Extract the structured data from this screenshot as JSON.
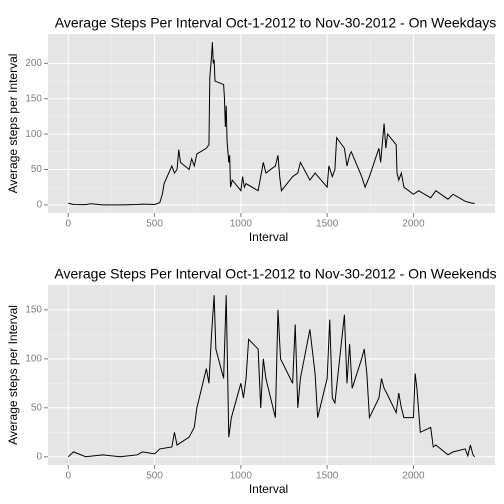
{
  "chart_data": [
    {
      "type": "line",
      "title": "Average Steps Per Interval  Oct-1-2012 to Nov-30-2012 - On Weekdays",
      "xlabel": "Interval",
      "ylabel": "Average steps per Interval",
      "color": "#000000",
      "grid": true,
      "x": [
        0,
        30,
        100,
        130,
        200,
        300,
        400,
        430,
        500,
        530,
        545,
        555,
        600,
        615,
        630,
        640,
        650,
        700,
        715,
        730,
        745,
        800,
        815,
        820,
        830,
        835,
        840,
        845,
        850,
        900,
        905,
        910,
        915,
        920,
        930,
        935,
        940,
        950,
        1000,
        1010,
        1020,
        1030,
        1100,
        1130,
        1145,
        1200,
        1215,
        1225,
        1235,
        1300,
        1330,
        1345,
        1400,
        1430,
        1500,
        1510,
        1530,
        1545,
        1555,
        1600,
        1615,
        1630,
        1640,
        1700,
        1720,
        1745,
        1800,
        1810,
        1830,
        1840,
        1850,
        1900,
        1905,
        1915,
        1930,
        1945,
        2000,
        2030,
        2100,
        2130,
        2200,
        2230,
        2300,
        2330,
        2355
      ],
      "values": [
        2.3,
        0.5,
        0.4,
        1.5,
        0,
        0,
        0.5,
        1,
        0.5,
        3,
        15,
        30,
        55,
        45,
        50,
        78,
        60,
        50,
        65,
        55,
        72,
        80,
        85,
        180,
        210,
        230,
        200,
        205,
        175,
        170,
        150,
        110,
        140,
        90,
        60,
        70,
        25,
        35,
        20,
        40,
        25,
        30,
        20,
        60,
        45,
        55,
        70,
        40,
        20,
        40,
        45,
        60,
        35,
        45,
        25,
        55,
        40,
        50,
        95,
        80,
        55,
        70,
        75,
        40,
        25,
        40,
        80,
        60,
        115,
        80,
        100,
        85,
        45,
        35,
        45,
        25,
        15,
        20,
        10,
        20,
        8,
        15,
        5,
        3,
        2
      ],
      "xlim": [
        -117.75,
        2472.75
      ],
      "ylim": [
        -11.5,
        241.5
      ],
      "xticks": [
        0,
        500,
        1000,
        1500,
        2000
      ],
      "yticks": [
        0,
        50,
        100,
        150,
        200
      ]
    },
    {
      "type": "line",
      "title": "Average Steps Per Interval  Oct-1-2012 to Nov-30-2012 - On Weekends",
      "xlabel": "Interval",
      "ylabel": "Average steps per Interval",
      "color": "#000000",
      "grid": true,
      "x": [
        0,
        30,
        100,
        200,
        300,
        400,
        430,
        500,
        530,
        600,
        615,
        630,
        700,
        730,
        745,
        800,
        815,
        830,
        845,
        855,
        900,
        915,
        930,
        945,
        1000,
        1015,
        1030,
        1045,
        1100,
        1115,
        1130,
        1145,
        1200,
        1215,
        1230,
        1300,
        1315,
        1330,
        1345,
        1400,
        1430,
        1445,
        1500,
        1515,
        1530,
        1545,
        1600,
        1615,
        1630,
        1645,
        1700,
        1715,
        1730,
        1745,
        1800,
        1815,
        1830,
        1845,
        1900,
        1915,
        1930,
        1945,
        2000,
        2010,
        2020,
        2040,
        2100,
        2115,
        2130,
        2200,
        2230,
        2300,
        2315,
        2330,
        2345,
        2355
      ],
      "values": [
        0,
        5,
        0,
        2,
        0,
        2,
        5,
        3,
        8,
        10,
        25,
        12,
        20,
        30,
        50,
        90,
        75,
        125,
        165,
        110,
        80,
        165,
        20,
        40,
        75,
        60,
        80,
        120,
        110,
        50,
        100,
        80,
        40,
        150,
        100,
        75,
        135,
        50,
        80,
        130,
        85,
        40,
        80,
        140,
        60,
        55,
        145,
        75,
        115,
        70,
        100,
        110,
        85,
        40,
        60,
        80,
        70,
        65,
        45,
        65,
        50,
        40,
        40,
        85,
        70,
        25,
        30,
        10,
        12,
        2,
        5,
        8,
        1,
        12,
        2,
        0
      ],
      "xlim": [
        -117.75,
        2472.75
      ],
      "ylim": [
        -8.4,
        175.4
      ],
      "xticks": [
        0,
        500,
        1000,
        1500,
        2000
      ],
      "yticks": [
        0,
        50,
        100,
        150
      ]
    }
  ]
}
